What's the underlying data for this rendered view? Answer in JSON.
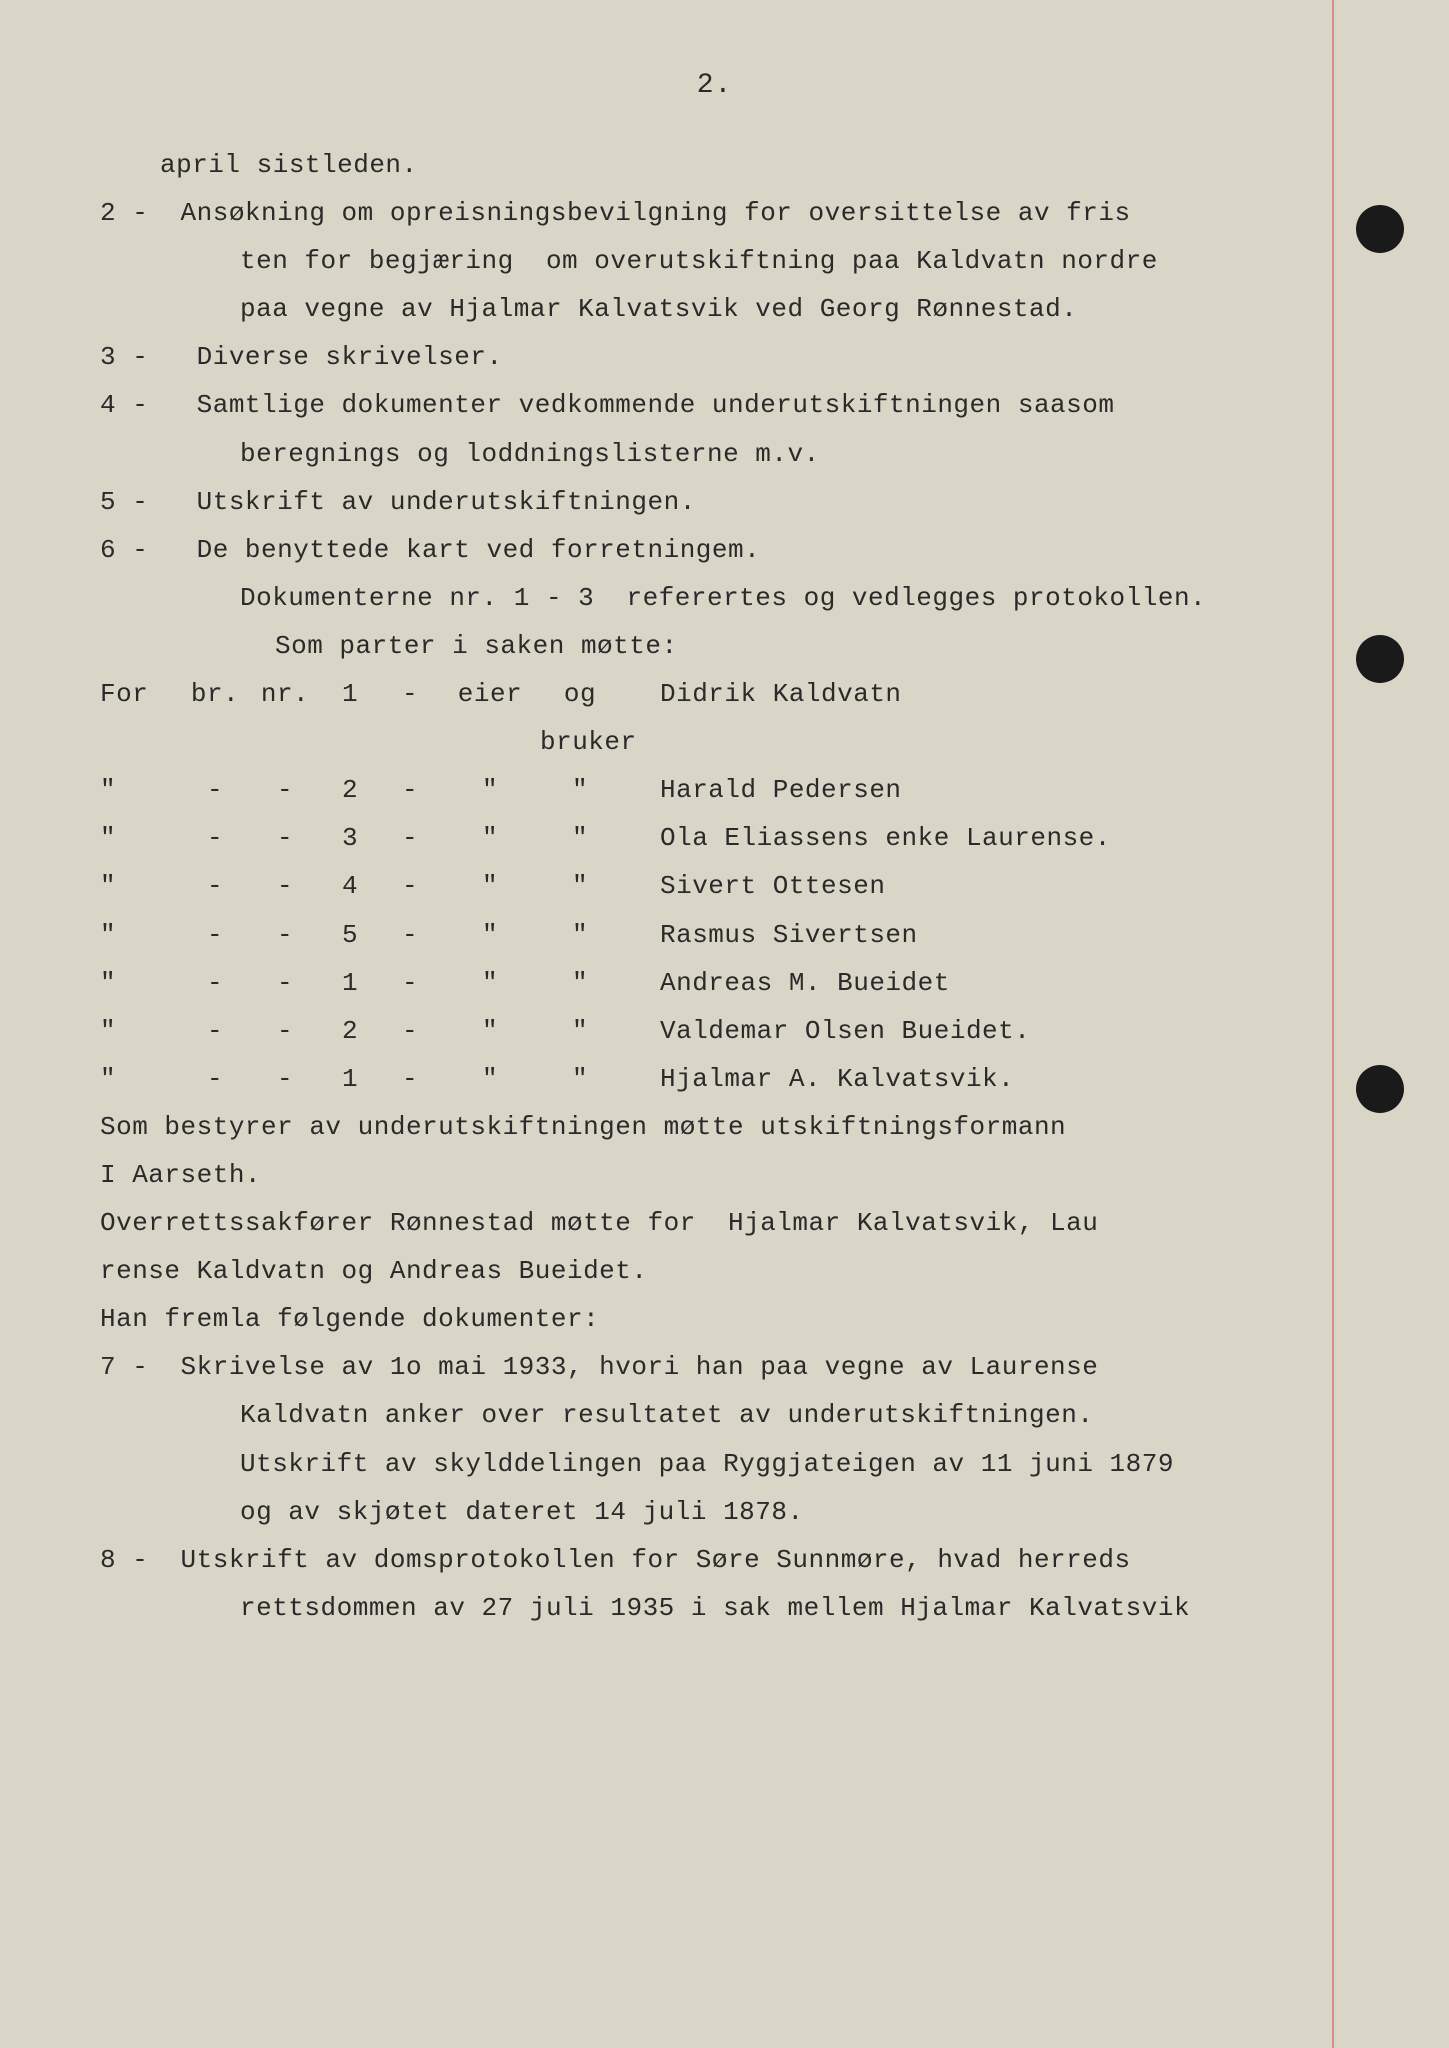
{
  "page_number": "2.",
  "colors": {
    "background": "#d9d6c8",
    "text": "#2a2a2a",
    "margin_line": "#d86b6b",
    "hole": "#1a1a1a"
  },
  "typography": {
    "font_family": "Courier New",
    "body_fontsize": 26,
    "line_height": 1.85
  },
  "lines": [
    {
      "cls": "indent1",
      "text": "april sistleden."
    },
    {
      "cls": "hang",
      "text": "2 -  Ansøkning om opreisningsbevilgning for oversittelse av fris"
    },
    {
      "cls": "indent2",
      "text": "ten for begjæring  om overutskiftning paa Kaldvatn nordre"
    },
    {
      "cls": "indent2",
      "text": "paa vegne av Hjalmar Kalvatsvik ved Georg Rønnestad."
    },
    {
      "cls": "hang",
      "text": "3 -   Diverse skrivelser."
    },
    {
      "cls": "hang",
      "text": "4 -   Samtlige dokumenter vedkommende underutskiftningen saasom"
    },
    {
      "cls": "indent2",
      "text": "beregnings og loddningslisterne m.v."
    },
    {
      "cls": "hang",
      "text": "5 -   Utskrift av underutskiftningen."
    },
    {
      "cls": "hang",
      "text": "6 -   De benyttede kart ved forretningem."
    },
    {
      "cls": "indent2",
      "text": "Dokumenterne nr. 1 - 3  referertes og vedlegges protokollen."
    },
    {
      "cls": "indent3",
      "text": "Som parter i saken møtte:"
    }
  ],
  "table_header": {
    "c1": "For",
    "c2": "br.",
    "c3": "nr.",
    "c4": "1",
    "c5": "-",
    "c6": "eier",
    "c7": "og bruker",
    "c8": "Didrik Kaldvatn"
  },
  "table_rows": [
    {
      "c1": "\"",
      "c2": "-",
      "c3": "-",
      "c4": "2",
      "c5": "-",
      "c6": "\"",
      "c7": "\"",
      "c8": "Harald Pedersen"
    },
    {
      "c1": "\"",
      "c2": "-",
      "c3": "-",
      "c4": "3",
      "c5": "-",
      "c6": "\"",
      "c7": "\"",
      "c8": "Ola Eliassens enke Laurense."
    },
    {
      "c1": "\"",
      "c2": "-",
      "c3": "-",
      "c4": "4",
      "c5": "-",
      "c6": "\"",
      "c7": "\"",
      "c8": "Sivert Ottesen"
    },
    {
      "c1": "\"",
      "c2": "-",
      "c3": "-",
      "c4": "5",
      "c5": "-",
      "c6": "\"",
      "c7": "\"",
      "c8": "Rasmus Sivertsen"
    },
    {
      "c1": "\"",
      "c2": "-",
      "c3": "-",
      "c4": "1",
      "c5": "-",
      "c6": "\"",
      "c7": "\"",
      "c8": "Andreas M. Bueidet"
    },
    {
      "c1": "\"",
      "c2": "-",
      "c3": "-",
      "c4": "2",
      "c5": "-",
      "c6": "\"",
      "c7": "\"",
      "c8": "Valdemar Olsen Bueidet."
    },
    {
      "c1": "\"",
      "c2": "-",
      "c3": "-",
      "c4": "1",
      "c5": "-",
      "c6": "\"",
      "c7": "\"",
      "c8": "Hjalmar A. Kalvatsvik."
    }
  ],
  "lines2": [
    {
      "cls": "normal",
      "text": "Som bestyrer av underutskiftningen møtte utskiftningsformann"
    },
    {
      "cls": "normal",
      "text": "I Aarseth."
    },
    {
      "cls": "normal",
      "text": "Overrettssakfører Rønnestad møtte for  Hjalmar Kalvatsvik, Lau"
    },
    {
      "cls": "normal",
      "text": "rense Kaldvatn og Andreas Bueidet."
    },
    {
      "cls": "normal",
      "text": "Han fremla følgende dokumenter:"
    },
    {
      "cls": "hang",
      "text": "7 -  Skrivelse av 1o mai 1933, hvori han paa vegne av Laurense"
    },
    {
      "cls": "indent2",
      "text": "Kaldvatn anker over resultatet av underutskiftningen."
    },
    {
      "cls": "indent2",
      "text": "Utskrift av skylddelingen paa Ryggjateigen av 11 juni 1879"
    },
    {
      "cls": "indent2",
      "text": "og av skjøtet dateret 14 juli 1878."
    },
    {
      "cls": "hang",
      "text": "8 -  Utskrift av domsprotokollen for Søre Sunnmøre, hvad herreds"
    },
    {
      "cls": "indent2",
      "text": "rettsdommen av 27 juli 1935 i sak mellem Hjalmar Kalvatsvik"
    }
  ]
}
